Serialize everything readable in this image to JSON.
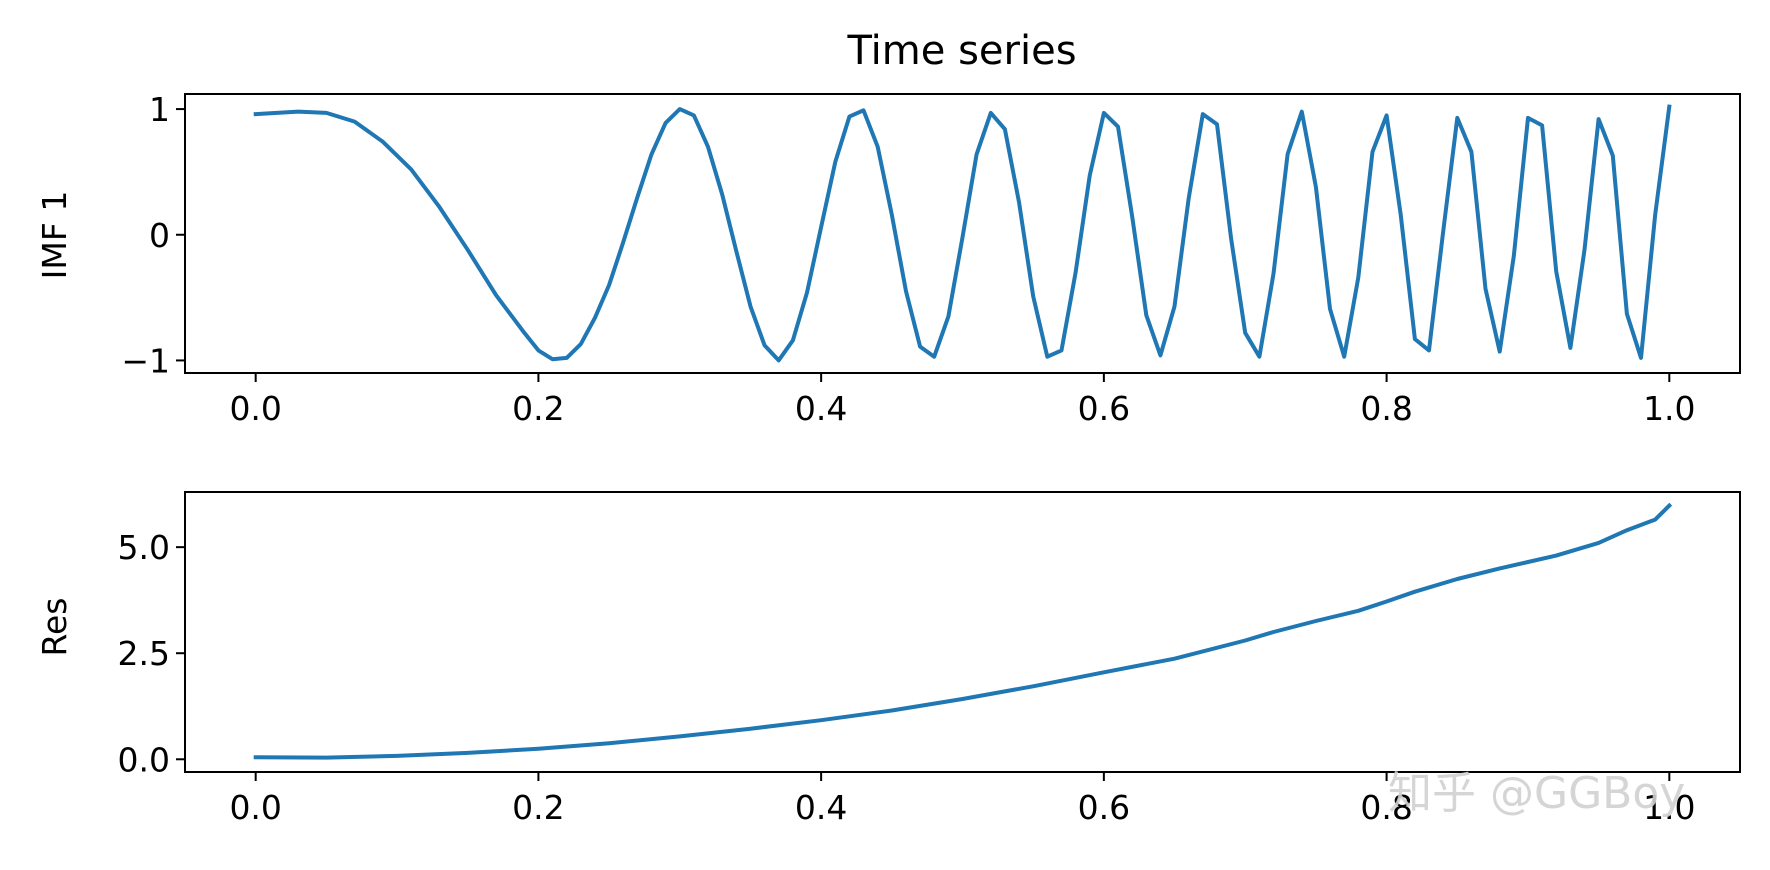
{
  "chart_data": [
    {
      "type": "line",
      "title": "Time series",
      "xlabel": "",
      "ylabel": "IMF 1",
      "xlim": [
        -0.05,
        1.05
      ],
      "ylim": [
        -1.1,
        1.12
      ],
      "x_ticks": [
        0.0,
        0.2,
        0.4,
        0.6,
        0.8,
        1.0
      ],
      "x_tick_labels": [
        "0.0",
        "0.2",
        "0.4",
        "0.6",
        "0.8",
        "1.0"
      ],
      "y_ticks": [
        -1,
        0,
        1
      ],
      "y_tick_labels": [
        "−1",
        "0",
        "1"
      ],
      "grid": false,
      "line_color": "#1f77b4",
      "series": [
        {
          "x": [
            0.0,
            0.03,
            0.05,
            0.07,
            0.09,
            0.11,
            0.13,
            0.15,
            0.17,
            0.19,
            0.2,
            0.21,
            0.22,
            0.23,
            0.24,
            0.25,
            0.26,
            0.27,
            0.28,
            0.29,
            0.3,
            0.31,
            0.32,
            0.33,
            0.34,
            0.35,
            0.36,
            0.37,
            0.38,
            0.39,
            0.4,
            0.41,
            0.42,
            0.43,
            0.44,
            0.45,
            0.46,
            0.47,
            0.48,
            0.49,
            0.5,
            0.51,
            0.52,
            0.53,
            0.54,
            0.55,
            0.56,
            0.57,
            0.58,
            0.59,
            0.6,
            0.61,
            0.62,
            0.63,
            0.64,
            0.65,
            0.66,
            0.67,
            0.68,
            0.69,
            0.7,
            0.71,
            0.72,
            0.73,
            0.74,
            0.75,
            0.76,
            0.77,
            0.78,
            0.79,
            0.8,
            0.81,
            0.82,
            0.83,
            0.84,
            0.85,
            0.86,
            0.87,
            0.88,
            0.89,
            0.9,
            0.91,
            0.92,
            0.93,
            0.94,
            0.95,
            0.96,
            0.97,
            0.98,
            0.99,
            1.0
          ],
          "y": [
            0.96,
            0.98,
            0.97,
            0.9,
            0.74,
            0.52,
            0.22,
            -0.12,
            -0.48,
            -0.78,
            -0.92,
            -0.99,
            -0.98,
            -0.87,
            -0.66,
            -0.4,
            -0.06,
            0.3,
            0.64,
            0.89,
            1.0,
            0.95,
            0.7,
            0.32,
            -0.13,
            -0.57,
            -0.88,
            -1.0,
            -0.84,
            -0.46,
            0.06,
            0.58,
            0.94,
            0.99,
            0.7,
            0.16,
            -0.45,
            -0.89,
            -0.97,
            -0.65,
            -0.02,
            0.64,
            0.97,
            0.84,
            0.26,
            -0.49,
            -0.97,
            -0.92,
            -0.3,
            0.47,
            0.97,
            0.86,
            0.15,
            -0.64,
            -0.96,
            -0.57,
            0.29,
            0.96,
            0.88,
            -0.03,
            -0.78,
            -0.97,
            -0.31,
            0.64,
            0.98,
            0.38,
            -0.59,
            -0.97,
            -0.34,
            0.66,
            0.95,
            0.16,
            -0.83,
            -0.92,
            0.02,
            0.93,
            0.66,
            -0.43,
            -0.93,
            -0.17,
            0.93,
            0.87,
            -0.29,
            -0.9,
            -0.12,
            0.92,
            0.63,
            -0.63,
            -0.98,
            0.16,
            1.02
          ]
        }
      ]
    },
    {
      "type": "line",
      "title": "",
      "xlabel": "",
      "ylabel": "Res",
      "xlim": [
        -0.05,
        1.05
      ],
      "ylim": [
        -0.3,
        6.3
      ],
      "x_ticks": [
        0.0,
        0.2,
        0.4,
        0.6,
        0.8,
        1.0
      ],
      "x_tick_labels": [
        "0.0",
        "0.2",
        "0.4",
        "0.6",
        "0.8",
        "1.0"
      ],
      "y_ticks": [
        0.0,
        2.5,
        5.0
      ],
      "y_tick_labels": [
        "0.0",
        "2.5",
        "5.0"
      ],
      "grid": false,
      "line_color": "#1f77b4",
      "series": [
        {
          "x": [
            0.0,
            0.05,
            0.1,
            0.15,
            0.2,
            0.25,
            0.3,
            0.35,
            0.4,
            0.45,
            0.5,
            0.55,
            0.6,
            0.65,
            0.7,
            0.72,
            0.75,
            0.78,
            0.8,
            0.82,
            0.85,
            0.88,
            0.9,
            0.92,
            0.95,
            0.97,
            0.99,
            1.0
          ],
          "y": [
            0.05,
            0.04,
            0.08,
            0.15,
            0.25,
            0.38,
            0.54,
            0.72,
            0.92,
            1.15,
            1.42,
            1.72,
            2.05,
            2.37,
            2.8,
            3.0,
            3.26,
            3.5,
            3.72,
            3.95,
            4.25,
            4.5,
            4.65,
            4.8,
            5.1,
            5.4,
            5.65,
            5.98
          ]
        }
      ]
    }
  ],
  "watermark": "知乎 @GGBoy"
}
